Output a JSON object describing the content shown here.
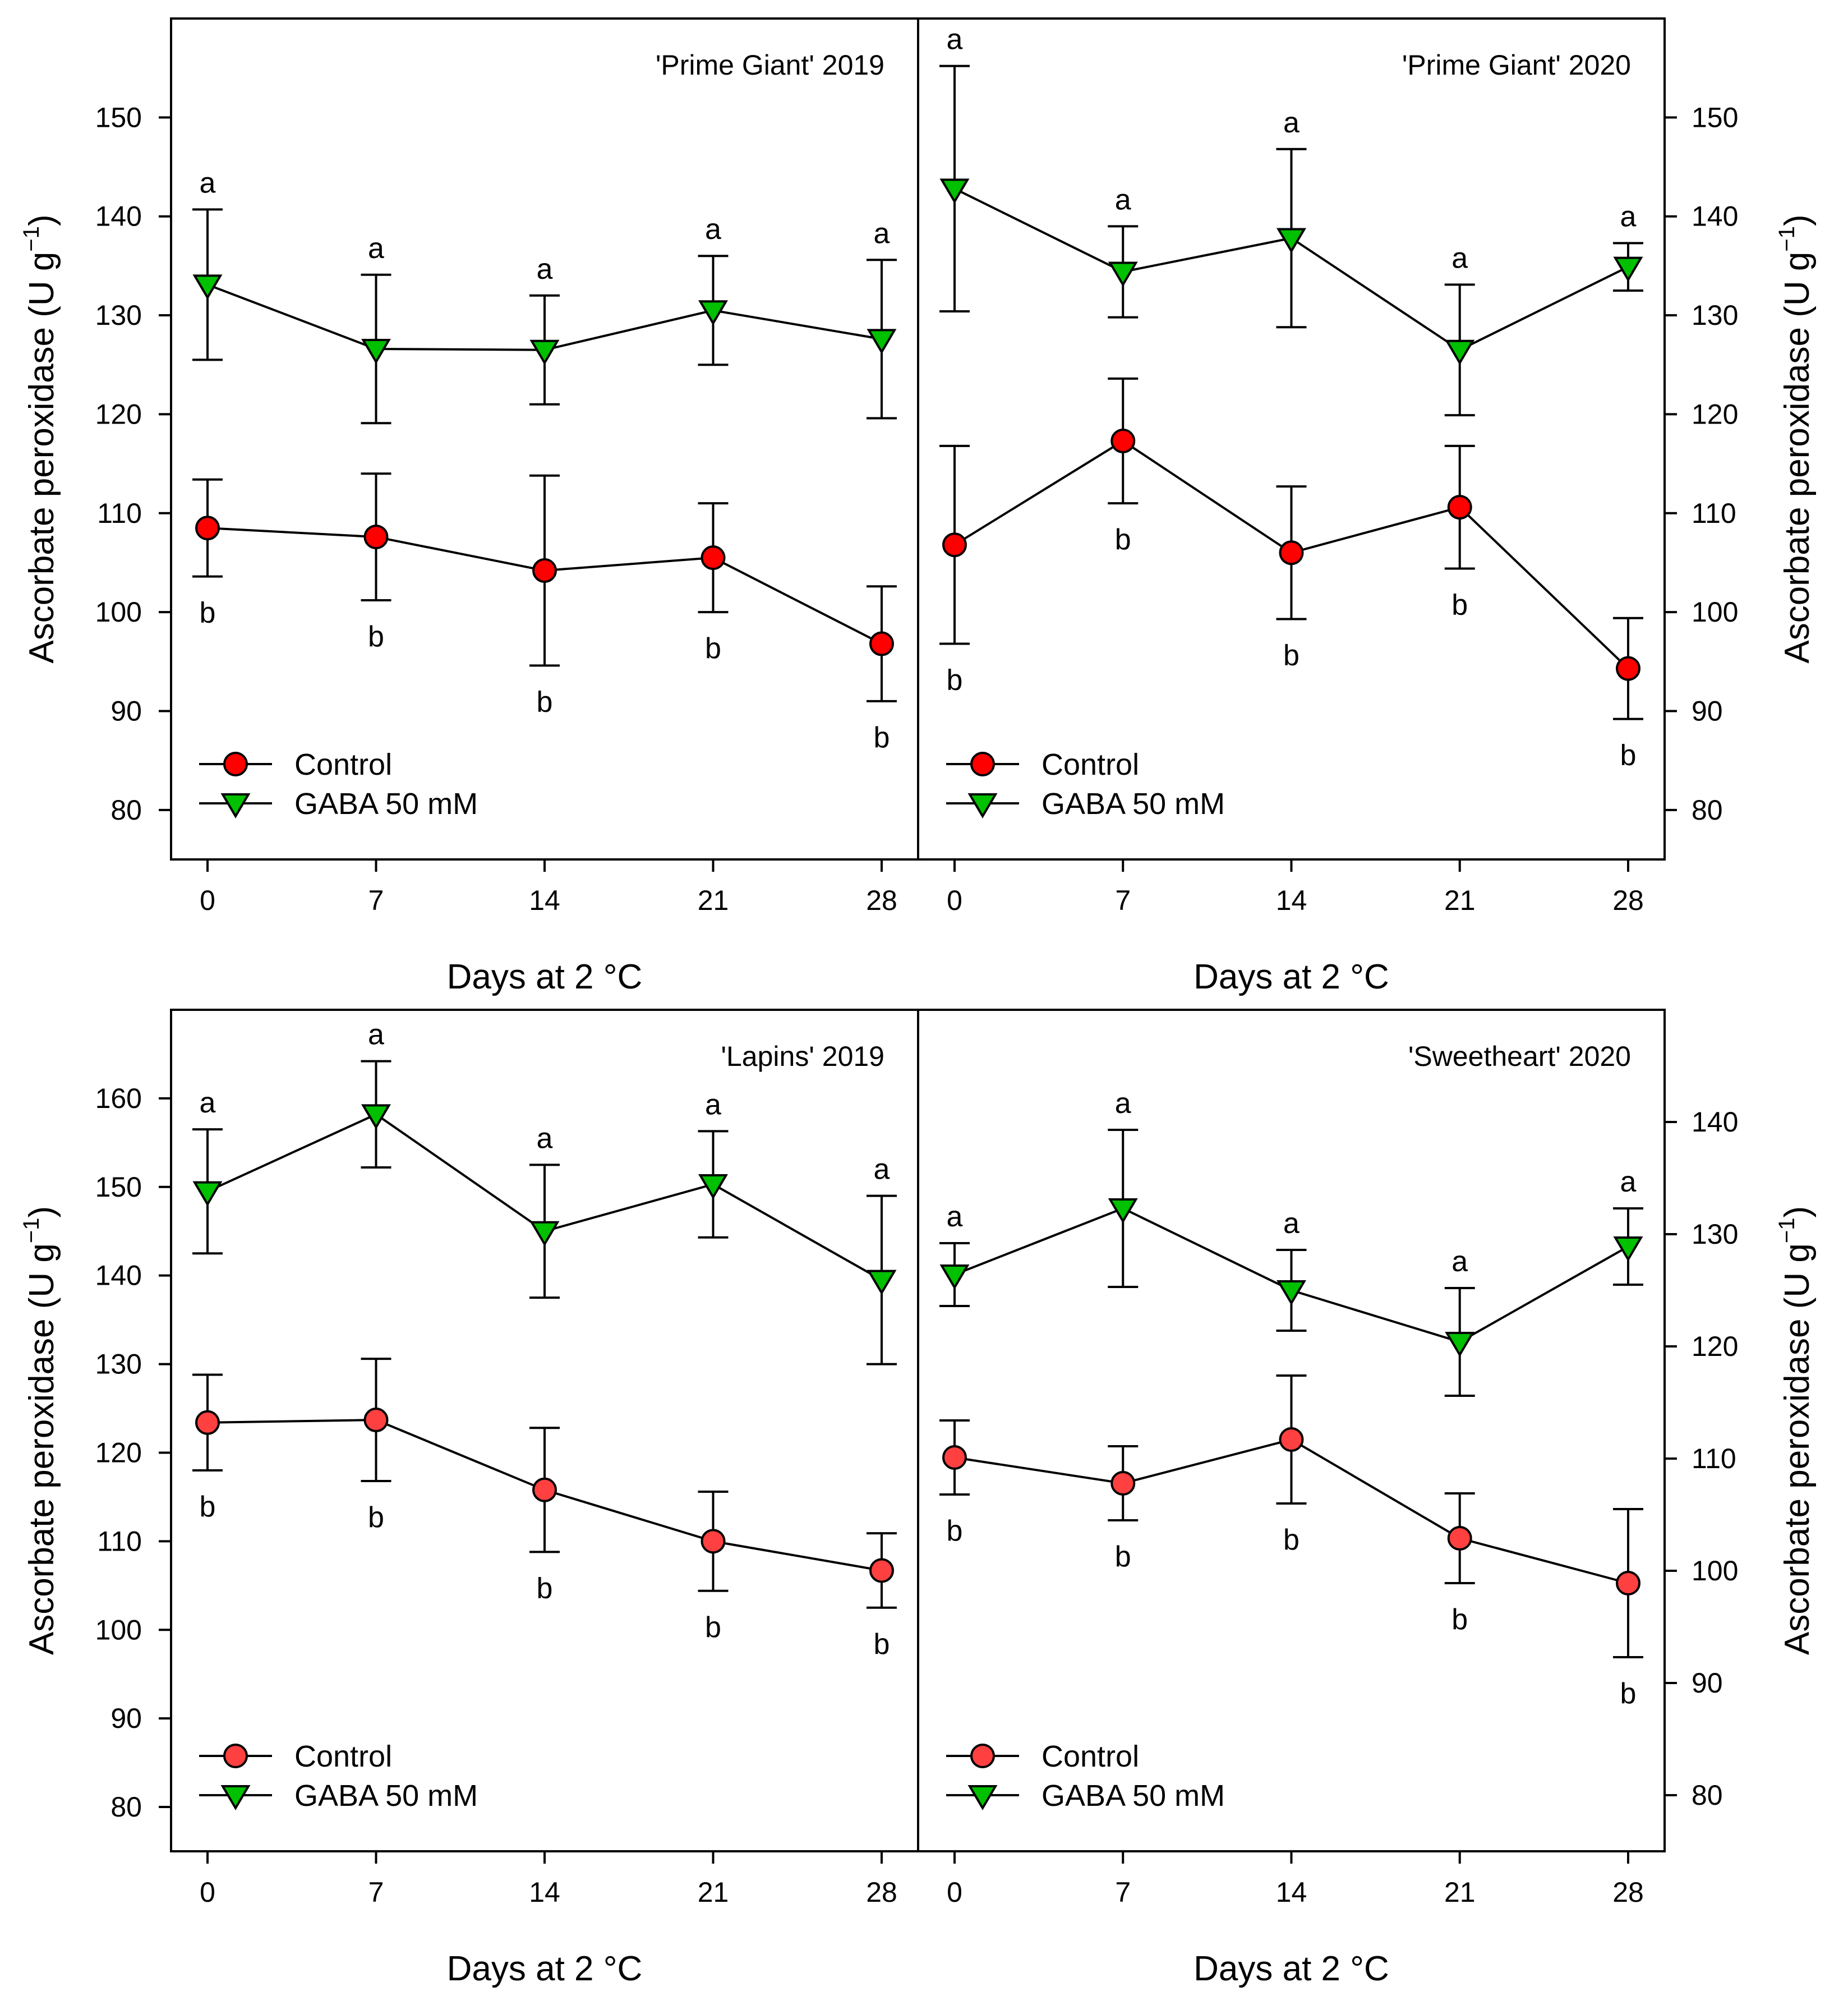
{
  "figure": {
    "ylabel": "Ascorbate peroxidase",
    "ylabel_unit": "(U g",
    "ylabel_sup": "−1",
    "ylabel_close": ")",
    "xlabel": "Days at 2 °C"
  },
  "chart_data": [
    {
      "type": "line",
      "title": "'Prime Giant' 2019",
      "xlabel": "Days at 2 °C",
      "ylabel": "Ascorbate peroxidase (U g−1)",
      "x": [
        0,
        7,
        14,
        21,
        28
      ],
      "xlim": [
        -1.5,
        29.5
      ],
      "ylim": [
        75,
        160
      ],
      "yticks": [
        80,
        90,
        100,
        110,
        120,
        130,
        140,
        150
      ],
      "yaxis_side": "left",
      "legend_position": "bottom-left",
      "series": [
        {
          "name": "Control",
          "marker": "circle",
          "color": "#ff0000",
          "values": [
            108.5,
            107.6,
            104.2,
            105.5,
            96.8
          ],
          "errors": [
            4.9,
            6.4,
            9.6,
            5.5,
            5.8
          ],
          "labels": [
            "b",
            "b",
            "b",
            "b",
            "b"
          ]
        },
        {
          "name": "GABA  50 mM",
          "marker": "triangle-down",
          "color": "#00c000",
          "values": [
            133.1,
            126.6,
            126.5,
            130.5,
            127.6
          ],
          "errors": [
            7.6,
            7.5,
            5.5,
            5.5,
            8.0
          ],
          "labels": [
            "a",
            "a",
            "a",
            "a",
            "a"
          ]
        }
      ]
    },
    {
      "type": "line",
      "title": "'Prime Giant' 2020",
      "xlabel": "Days at 2 °C",
      "ylabel": "Ascorbate peroxidase (U g−1)",
      "x": [
        0,
        7,
        14,
        21,
        28
      ],
      "xlim": [
        -1.5,
        29.5
      ],
      "ylim": [
        75,
        160
      ],
      "yticks": [
        80,
        90,
        100,
        110,
        120,
        130,
        140,
        150
      ],
      "yaxis_side": "right",
      "legend_position": "bottom-left",
      "series": [
        {
          "name": "Control",
          "marker": "circle",
          "color": "#ff0000",
          "values": [
            106.8,
            117.3,
            106.0,
            110.6,
            94.3
          ],
          "errors": [
            10.0,
            6.3,
            6.7,
            6.2,
            5.1
          ],
          "labels": [
            "b",
            "b",
            "b",
            "b",
            "b"
          ]
        },
        {
          "name": "GABA  50 mM",
          "marker": "triangle-down",
          "color": "#00c000",
          "values": [
            142.8,
            134.4,
            137.8,
            126.5,
            134.9
          ],
          "errors": [
            12.4,
            4.6,
            9.0,
            6.6,
            2.4
          ],
          "labels": [
            "a",
            "a",
            "a",
            "a",
            "a"
          ]
        }
      ]
    },
    {
      "type": "line",
      "title": "'Lapins' 2019",
      "xlabel": "Days at 2 °C",
      "ylabel": "Ascorbate peroxidase (U g−1)",
      "x": [
        0,
        7,
        14,
        21,
        28
      ],
      "xlim": [
        -1.5,
        29.5
      ],
      "ylim": [
        75,
        170
      ],
      "yticks": [
        80,
        90,
        100,
        110,
        120,
        130,
        140,
        150,
        160
      ],
      "yaxis_side": "left",
      "legend_position": "bottom-left",
      "series": [
        {
          "name": "Control",
          "marker": "circle",
          "color": "#ff4040",
          "values": [
            123.4,
            123.7,
            115.8,
            110.0,
            106.7
          ],
          "errors": [
            5.4,
            6.9,
            7.0,
            5.6,
            4.2
          ],
          "labels": [
            "b",
            "b",
            "b",
            "b",
            "b"
          ]
        },
        {
          "name": "GABA 50 mM",
          "marker": "triangle-down",
          "color": "#00c000",
          "values": [
            149.5,
            158.2,
            145.0,
            150.3,
            139.5
          ],
          "errors": [
            7.0,
            6.0,
            7.5,
            6.0,
            9.5
          ],
          "labels": [
            "a",
            "a",
            "a",
            "a",
            "a"
          ]
        }
      ]
    },
    {
      "type": "line",
      "title": "'Sweetheart' 2020",
      "xlabel": "Days at 2 °C",
      "ylabel": "Ascorbate peroxidase (U g−1)",
      "x": [
        0,
        7,
        14,
        21,
        28
      ],
      "xlim": [
        -1.5,
        29.5
      ],
      "ylim": [
        75,
        150
      ],
      "yticks": [
        80,
        90,
        100,
        110,
        120,
        130,
        140
      ],
      "yaxis_side": "right",
      "legend_position": "bottom-left",
      "series": [
        {
          "name": "Control",
          "marker": "circle",
          "color": "#ff4040",
          "values": [
            110.1,
            107.8,
            111.7,
            102.9,
            98.9
          ],
          "errors": [
            3.3,
            3.3,
            5.7,
            4.0,
            6.6
          ],
          "labels": [
            "b",
            "b",
            "b",
            "b",
            "b"
          ]
        },
        {
          "name": "GABA 50 mM",
          "marker": "triangle-down",
          "color": "#00c000",
          "values": [
            126.4,
            132.3,
            125.0,
            120.4,
            128.9
          ],
          "errors": [
            2.8,
            7.0,
            3.6,
            4.8,
            3.4
          ],
          "labels": [
            "a",
            "a",
            "a",
            "a",
            "a"
          ]
        }
      ]
    }
  ]
}
